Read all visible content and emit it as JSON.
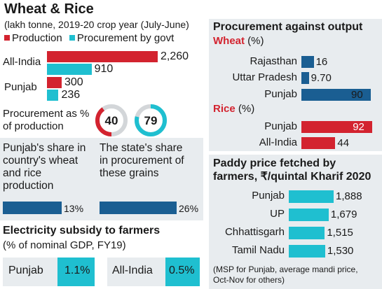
{
  "colors": {
    "red": "#d3232f",
    "cyan": "#1fbfd0",
    "navy": "#1a5e92",
    "panel": "#e8ecef",
    "grey": "#d3d6d9"
  },
  "chart_data": [
    {
      "type": "bar",
      "title": "Wheat & Rice",
      "subtitle": "(lakh tonne, 2019-20 crop year (July-June)",
      "categories": [
        "All-India",
        "Punjab"
      ],
      "series": [
        {
          "name": "Production",
          "values": [
            2260,
            300
          ],
          "labels": [
            "2,260",
            "300"
          ]
        },
        {
          "name": "Procurement by govt",
          "values": [
            910,
            236
          ],
          "labels": [
            "910",
            "236"
          ]
        }
      ]
    },
    {
      "type": "pie",
      "title": "Procurement as % of production",
      "categories": [
        "All-India",
        "Punjab"
      ],
      "values": [
        40,
        79
      ]
    },
    {
      "type": "bar",
      "title": "Punjab's share in country's wheat and rice production",
      "values": [
        13
      ],
      "labels": [
        "13%"
      ]
    },
    {
      "type": "bar",
      "title": "The state's share in procurement of these grains",
      "values": [
        26
      ],
      "labels": [
        "26%"
      ]
    },
    {
      "type": "table",
      "title": "Electricity subsidy to farmers",
      "subtitle": "(% of nominal GDP, FY19)",
      "categories": [
        "Punjab",
        "All-India"
      ],
      "labels": [
        "1.1%",
        "0.5%"
      ]
    },
    {
      "type": "bar",
      "title": "Procurement against output",
      "groups": [
        {
          "name": "Wheat",
          "unit": " (%)",
          "categories": [
            "Rajasthan",
            "Uttar Pradesh",
            "Punjab"
          ],
          "values": [
            16,
            9.7,
            90
          ],
          "labels": [
            "16",
            "9.70",
            "90"
          ]
        },
        {
          "name": "Rice",
          "unit": " (%)",
          "categories": [
            "Punjab",
            "All-India"
          ],
          "values": [
            92,
            44
          ],
          "labels": [
            "92",
            "44"
          ]
        }
      ]
    },
    {
      "type": "bar",
      "title": "Paddy price fetched by farmers, ₹/quintal Kharif 2020",
      "categories": [
        "Punjab",
        "UP",
        "Chhattisgarh",
        "Tamil Nadu"
      ],
      "values": [
        1888,
        1679,
        1515,
        1530
      ],
      "labels": [
        "1,888",
        "1,679",
        "1,515",
        "1,530"
      ],
      "note_line1": "(MSP for Punjab, average mandi price,",
      "note_line2": "Oct-Nov for others)"
    }
  ]
}
